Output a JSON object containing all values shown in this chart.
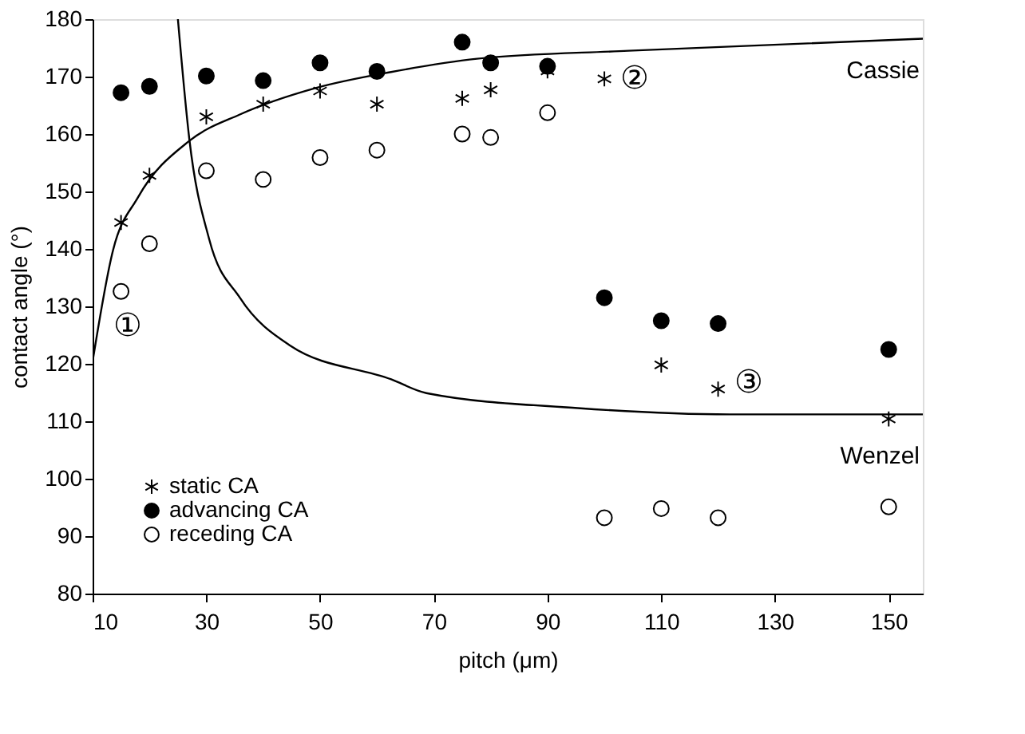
{
  "chart_data": {
    "type": "scatter",
    "xlabel": "pitch (μm)",
    "ylabel": "contact angle (°)",
    "xlim": [
      10,
      156
    ],
    "ylim": [
      80,
      180
    ],
    "xticks": [
      10,
      30,
      50,
      70,
      90,
      110,
      130,
      150
    ],
    "yticks": [
      80,
      90,
      100,
      110,
      120,
      130,
      140,
      150,
      160,
      170,
      180
    ],
    "grid": false,
    "legend": "bottom left",
    "x": [
      15,
      20,
      30,
      40,
      50,
      60,
      75,
      80,
      90,
      100,
      110,
      120,
      150
    ],
    "series": [
      {
        "name": "static CA",
        "color": "#000000",
        "marker": "cross",
        "values": [
          144.6,
          152.8,
          163.0,
          165.2,
          167.5,
          165.2,
          166.2,
          167.7,
          171.0,
          169.6,
          119.8,
          115.6,
          110.4
        ]
      },
      {
        "name": "advancing CA",
        "color": "#000000",
        "marker": "circle",
        "values": [
          167.2,
          168.3,
          170.1,
          169.3,
          172.4,
          170.9,
          176.0,
          172.4,
          171.8,
          131.5,
          127.5,
          127.0,
          122.5
        ]
      },
      {
        "name": "receding CA",
        "color": "#ffffff",
        "marker": "circle",
        "values": [
          132.6,
          140.9,
          153.6,
          152.1,
          155.9,
          157.2,
          160.0,
          159.4,
          163.7,
          93.2,
          94.8,
          93.2,
          95.1
        ]
      },
      {
        "type": "line",
        "color": "#000000",
        "x": [
          10,
          13.6,
          18,
          27,
          35.9,
          49.2,
          62.5,
          77.6,
          104.2,
          156
        ],
        "values": [
          120.4,
          139.8,
          149,
          158.8,
          163.4,
          168,
          170.8,
          173.1,
          174.5,
          176.6
        ]
      },
      {
        "type": "line",
        "color": "#000000",
        "x": [
          25,
          27,
          30.5,
          35.9,
          44.7,
          62.5,
          68.7,
          95.3,
          122,
          156
        ],
        "values": [
          180,
          159.2,
          141.7,
          131.5,
          123.2,
          117.3,
          114.9,
          112.3,
          111.2,
          111.2
        ]
      }
    ],
    "annotations": [
      {
        "text": "①",
        "x": 15,
        "y": 132.6
      },
      {
        "text": "②",
        "x": 100,
        "y": 169.6
      },
      {
        "text": "③",
        "x": 120,
        "y": 115.6
      },
      {
        "text": "Cassie",
        "x": 156,
        "y": 176.6
      },
      {
        "text": "Wenzel",
        "x": 156,
        "y": 111.2
      }
    ]
  }
}
